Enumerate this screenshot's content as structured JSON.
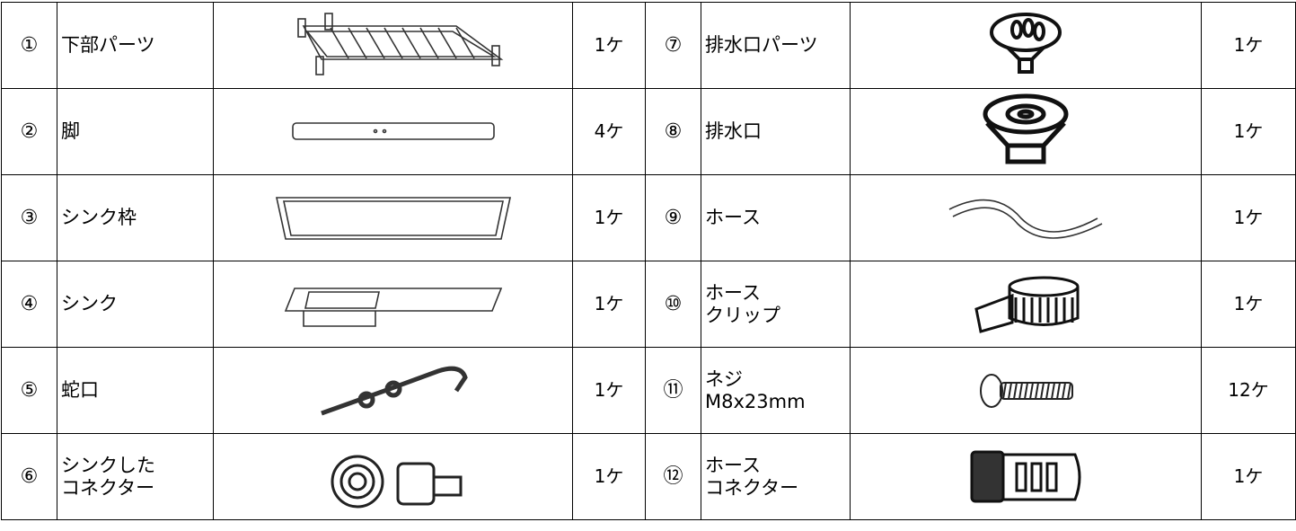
{
  "table": {
    "rows": [
      [
        "①",
        "下部パーツ",
        "1ケ",
        "⑦",
        "排水口パーツ",
        "1ケ"
      ],
      [
        "②",
        "脚",
        "4ケ",
        "⑧",
        "排水口",
        "1ケ"
      ],
      [
        "③",
        "シンク枠",
        "1ケ",
        "⑨",
        "ホース",
        "1ケ"
      ],
      [
        "④",
        "シンク",
        "1ケ",
        "⑩",
        "ホース\nクリップ",
        "1ケ"
      ],
      [
        "⑤",
        "蛇口",
        "1ケ",
        "⑪",
        "ネジ\nM8x23mm",
        "12ケ"
      ],
      [
        "⑥",
        "シンクした\nコネクター",
        "1ケ",
        "⑫",
        "ホース\nコネクター",
        "1ケ"
      ]
    ]
  }
}
